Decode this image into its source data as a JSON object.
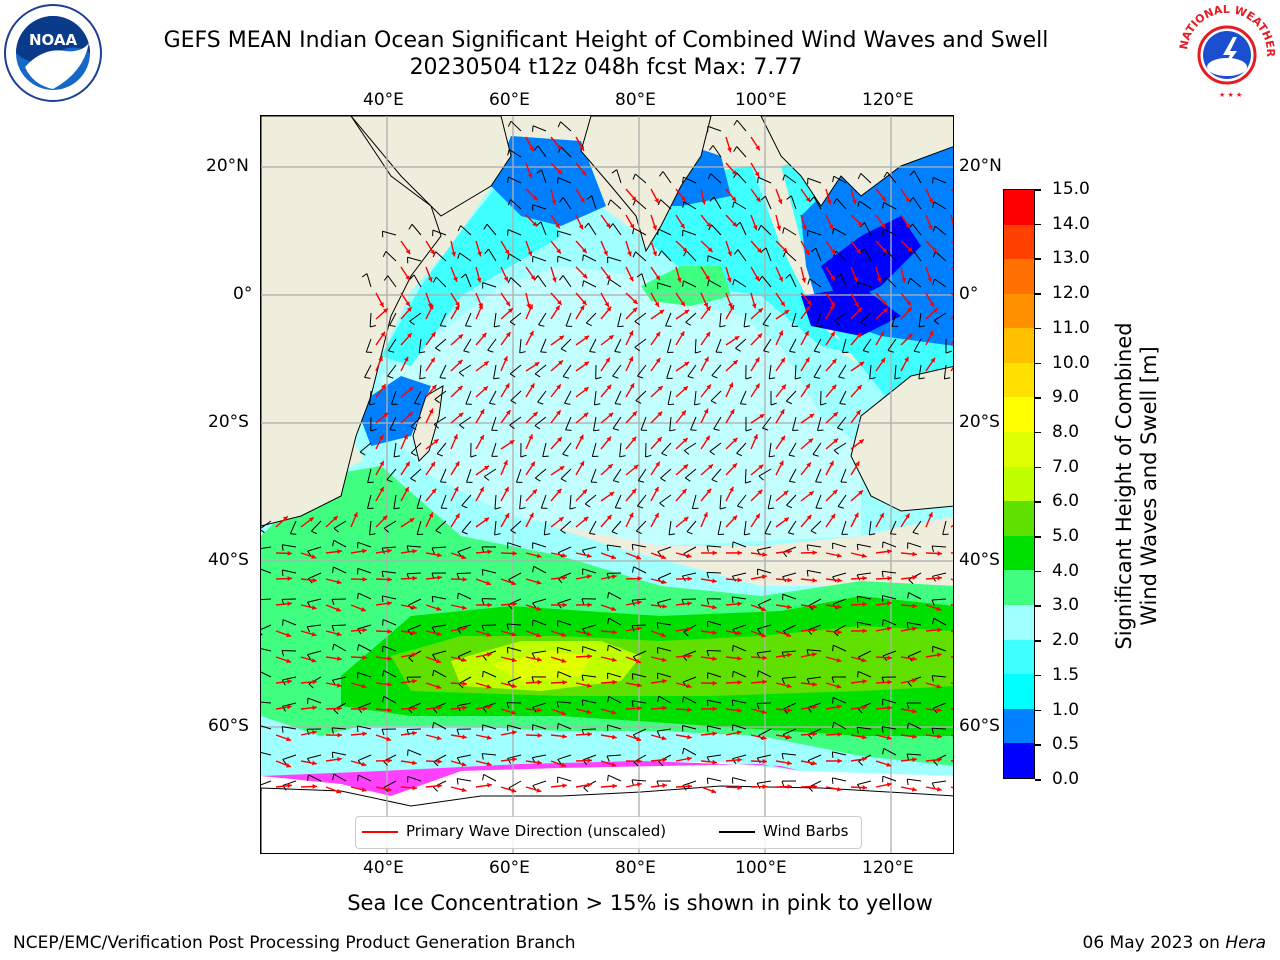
{
  "title": {
    "line1": "GEFS MEAN Indian Ocean Significant Height of Combined Wind Waves and Swell",
    "line2": "20230504 t12z 048h fcst   Max: 7.77"
  },
  "logos": {
    "left_text": "NOAA",
    "right_text": "NATIONAL WEATHER SERVICE"
  },
  "axes": {
    "top_lon_ticks": [
      "40°E",
      "60°E",
      "80°E",
      "100°E",
      "120°E"
    ],
    "bottom_lon_ticks": [
      "40°E",
      "60°E",
      "80°E",
      "100°E",
      "120°E"
    ],
    "left_lat_ticks": [
      "20°N",
      "0°",
      "20°S",
      "40°S",
      "60°S"
    ],
    "right_lat_ticks": [
      "20°N",
      "0°",
      "20°S",
      "40°S",
      "60°S"
    ]
  },
  "colorbar": {
    "label_line1": "Significant Height of Combined",
    "label_line2": "Wind Waves and Swell [m]",
    "ticks": [
      "0.0",
      "0.5",
      "1.0",
      "1.5",
      "2.0",
      "3.0",
      "4.0",
      "5.0",
      "6.0",
      "7.0",
      "8.0",
      "9.0",
      "10.0",
      "11.0",
      "12.0",
      "13.0",
      "14.0",
      "15.0"
    ],
    "colors": [
      "#0000ff",
      "#0080ff",
      "#00ffff",
      "#40ffff",
      "#a0ffff",
      "#40ff80",
      "#00e000",
      "#60e000",
      "#c0ff00",
      "#e0ff00",
      "#ffff00",
      "#ffe000",
      "#ffc000",
      "#ff9000",
      "#ff7000",
      "#ff4000",
      "#ff0000"
    ]
  },
  "legend": {
    "wave_direction": "Primary Wave Direction (unscaled)",
    "wind_barbs": "Wind Barbs",
    "wave_color": "#ff0000",
    "barb_color": "#000000"
  },
  "caption": "Sea Ice Concentration > 15% is shown in pink to yellow",
  "footer": {
    "left": "NCEP/EMC/Verification Post Processing Product Generation Branch",
    "right_prefix": "06 May 2023 on ",
    "right_host": "Hera"
  }
}
